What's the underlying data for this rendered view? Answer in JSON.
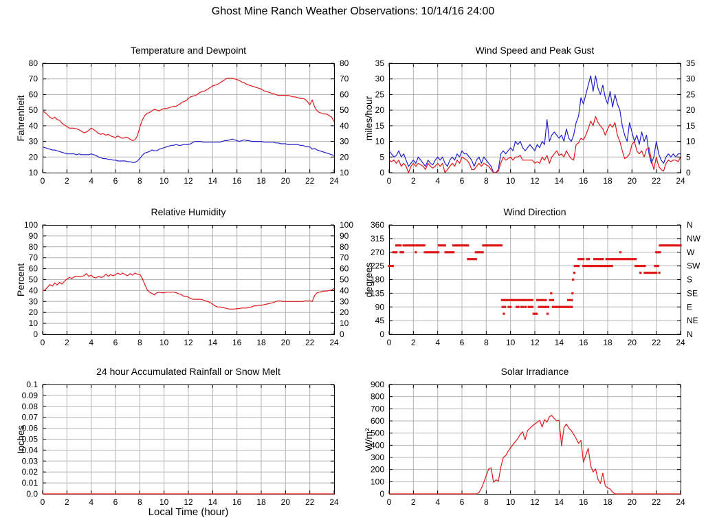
{
  "page_title": "Ghost Mine Ranch Weather Observations: 10/14/16 24:00",
  "x_axis_label": "Local Time (hour)",
  "colors": {
    "background": "#ffffff",
    "axis": "#000000",
    "grid": "#b4b4b4",
    "series_red": "#e01717",
    "series_blue": "#2020cc"
  },
  "chart_data": [
    {
      "type": "line",
      "title": "Temperature and Dewpoint",
      "ylabel": "Fahrenheit",
      "ylim": [
        10,
        80
      ],
      "ytick_step": 10,
      "mirror_y_labels": true,
      "xlim": [
        0,
        24
      ],
      "xtick_step": 2,
      "grid": true,
      "series": [
        {
          "name": "Temperature",
          "color": "red",
          "x0": 0,
          "dx": 0.2,
          "values": [
            49.5,
            48.5,
            47,
            45.5,
            44.5,
            45.5,
            44,
            43.5,
            41.5,
            40.5,
            39.5,
            38.5,
            38.5,
            38.5,
            38,
            37.5,
            36.5,
            35.5,
            36,
            37,
            38.5,
            37.5,
            36.5,
            35,
            34.5,
            35,
            34,
            34.5,
            33.5,
            33,
            32.5,
            33.5,
            32.5,
            32,
            32.5,
            32.5,
            31.5,
            30.5,
            31,
            33.5,
            39,
            43.5,
            46.5,
            48,
            48.5,
            49.5,
            50.5,
            50,
            49.5,
            50.5,
            51,
            51,
            51.5,
            52,
            52.5,
            52.5,
            53.5,
            54.5,
            55.5,
            56,
            57.5,
            58.5,
            59,
            59.5,
            60.5,
            61.5,
            62,
            62.5,
            63.5,
            64.5,
            65.5,
            66,
            66.5,
            67.5,
            68.5,
            69.5,
            70.5,
            70.5,
            70.5,
            70,
            69.5,
            69,
            68,
            67.5,
            66.5,
            66,
            65.5,
            65,
            64.5,
            64,
            63.5,
            62.5,
            62,
            61.5,
            61,
            60.5,
            60,
            59.5,
            59.5,
            59.5,
            59.5,
            59.5,
            59,
            58.5,
            58.5,
            58,
            57.5,
            57.5,
            57,
            55.5,
            53.5,
            56.5,
            52,
            49.5,
            48.5,
            48,
            47.5,
            47.5,
            46.5,
            45.5,
            42.5
          ]
        },
        {
          "name": "Dewpoint",
          "color": "blue",
          "x0": 0,
          "dx": 0.2,
          "values": [
            26.5,
            26,
            25.5,
            25,
            24.5,
            24.5,
            24,
            23.5,
            23,
            22.5,
            22,
            22,
            22,
            22,
            21.5,
            22,
            21.5,
            21.5,
            21.5,
            21.5,
            22,
            21.5,
            21,
            20,
            19.5,
            19,
            19,
            18.5,
            18.5,
            18,
            18,
            17.5,
            17.5,
            17.5,
            17.5,
            17,
            17,
            16.5,
            16.5,
            17.5,
            19,
            21,
            22.5,
            23,
            23.5,
            24.5,
            24,
            24,
            25,
            25.5,
            26,
            26.5,
            27,
            27.5,
            27.5,
            28,
            27.5,
            27.5,
            28,
            28,
            28,
            28.5,
            29.5,
            30,
            30,
            30,
            29.5,
            29.5,
            29.5,
            29.5,
            29.5,
            29.5,
            29.5,
            29.5,
            30,
            30.5,
            30.5,
            31,
            31.5,
            31,
            30.5,
            30,
            30.5,
            31,
            30.5,
            30.5,
            30,
            30,
            30,
            30,
            30,
            29.5,
            29.5,
            29.5,
            29.5,
            29.5,
            29,
            29,
            28.5,
            28.5,
            28.5,
            28,
            28,
            28,
            28,
            28,
            27.5,
            27.5,
            27,
            26.5,
            26.5,
            25,
            25.5,
            24.5,
            24,
            23.5,
            23,
            22.5,
            22,
            21.5,
            21
          ]
        }
      ]
    },
    {
      "type": "line",
      "title": "Wind Speed and Peak Gust",
      "ylabel": "miles/hour",
      "ylim": [
        0,
        35
      ],
      "ytick_step": 5,
      "mirror_y_labels": true,
      "xlim": [
        0,
        24
      ],
      "xtick_step": 2,
      "grid": true,
      "series": [
        {
          "name": "Peak Gust",
          "color": "blue",
          "x0": 0,
          "dx": 0.2,
          "values": [
            7,
            6,
            5,
            5.5,
            7,
            5,
            6,
            4,
            2,
            3,
            4,
            3,
            5,
            4,
            3,
            2,
            4,
            3,
            2.5,
            4,
            5,
            4,
            5,
            3,
            2,
            4,
            5,
            4,
            6,
            5,
            7,
            6,
            6,
            5,
            4,
            2,
            4,
            5,
            3,
            5,
            4,
            3,
            2,
            0,
            0,
            1,
            6,
            7,
            6,
            7,
            8,
            7,
            10,
            9,
            10,
            8,
            7,
            8,
            9,
            8,
            7,
            9,
            8,
            10,
            9,
            17,
            10,
            12,
            13,
            12,
            11,
            12,
            10,
            14,
            11,
            10,
            12,
            16,
            18,
            24,
            22,
            25,
            28,
            31,
            26,
            31,
            27,
            25,
            28,
            24,
            22,
            26,
            21,
            25,
            22,
            20,
            15,
            12,
            10,
            16,
            13,
            10,
            12,
            9,
            13,
            10,
            12,
            6,
            3,
            5,
            10,
            6,
            4,
            3,
            5,
            6,
            5,
            6,
            5,
            6,
            6
          ]
        },
        {
          "name": "Wind Speed",
          "color": "red",
          "x0": 0,
          "dx": 0.2,
          "values": [
            4,
            3.5,
            4,
            3,
            4,
            2,
            3,
            2,
            0,
            2,
            3,
            2,
            3,
            2.5,
            2,
            1,
            3,
            2,
            1.5,
            2,
            3,
            2,
            3,
            0,
            1,
            2,
            3,
            2,
            4,
            3,
            5,
            4.5,
            4,
            3,
            1,
            1,
            2,
            3,
            2,
            3,
            2.5,
            2,
            1,
            0,
            0,
            0.5,
            3,
            5,
            4,
            4.5,
            5,
            4,
            5,
            5,
            5.5,
            4,
            4,
            4,
            4,
            4,
            3,
            3.5,
            3,
            5,
            4,
            5.5,
            3,
            5,
            6,
            7,
            5.5,
            6,
            5,
            7,
            5.5,
            4.5,
            4,
            9,
            9.5,
            11,
            10.5,
            12,
            14,
            16.5,
            15,
            18,
            16,
            15,
            14,
            12,
            14,
            15.5,
            14.5,
            16,
            12,
            10,
            7,
            4.5,
            5,
            6,
            9,
            10,
            7,
            6,
            7,
            5,
            7.5,
            8,
            4,
            1,
            5,
            2,
            1,
            0.5,
            3,
            4,
            3.5,
            4,
            4,
            3.5,
            5
          ]
        }
      ]
    },
    {
      "type": "line",
      "title": "Relative Humidity",
      "ylabel": "Percent",
      "ylim": [
        0,
        100
      ],
      "ytick_step": 10,
      "mirror_y_labels": true,
      "xlim": [
        0,
        24
      ],
      "xtick_step": 2,
      "grid": true,
      "series": [
        {
          "name": "Relative Humidity",
          "color": "red",
          "x0": 0,
          "dx": 0.2,
          "values": [
            40,
            40.5,
            43,
            45.5,
            44,
            47,
            45,
            47.5,
            46,
            48.5,
            50.5,
            52,
            51,
            52.5,
            53,
            52.5,
            53,
            53.5,
            55.5,
            53,
            54,
            52,
            51.5,
            53,
            52,
            52.5,
            55,
            53,
            54.5,
            53.5,
            54.5,
            56,
            54.5,
            56,
            54.5,
            53.5,
            55.5,
            54,
            56,
            55,
            55,
            51,
            46,
            41,
            38.5,
            37.5,
            36,
            38,
            38.5,
            38,
            38,
            38.5,
            38.5,
            38.5,
            38.5,
            38,
            37,
            36.5,
            35,
            34.5,
            34,
            32.5,
            32,
            32,
            32,
            32,
            31.5,
            30.5,
            30,
            29,
            27.5,
            26,
            25,
            25,
            24.5,
            24,
            23.5,
            23,
            23,
            23,
            23.5,
            23.5,
            24,
            24,
            24,
            24.5,
            25,
            26,
            26,
            26.5,
            26.5,
            27,
            27.5,
            28,
            28.5,
            29,
            30,
            30.5,
            30.5,
            30,
            30,
            30,
            30,
            30,
            30,
            30,
            30,
            30,
            30.5,
            30.5,
            30.5,
            30,
            35.5,
            38,
            38.5,
            39,
            39.5,
            39.5,
            40,
            40.5,
            42
          ]
        }
      ]
    },
    {
      "type": "scatter",
      "title": "Wind Direction",
      "ylabel": "degrees",
      "ylim": [
        0,
        360
      ],
      "ytick_step": 45,
      "mirror_y_labels": false,
      "xlim": [
        0,
        24
      ],
      "xtick_step": 2,
      "grid": true,
      "right_axis_labels": [
        "N",
        "NE",
        "E",
        "SE",
        "S",
        "SW",
        "W",
        "NW",
        "N"
      ],
      "point_color": "red",
      "runs": [
        [
          225,
          0.0,
          0.3
        ],
        [
          270,
          0.35,
          0.6
        ],
        [
          292.5,
          0.6,
          0.95
        ],
        [
          270,
          0.95,
          1.15
        ],
        [
          292.5,
          1.2,
          2.9
        ],
        [
          270,
          2.15,
          2.25
        ],
        [
          270,
          2.95,
          4.05
        ],
        [
          292.5,
          4.1,
          4.6
        ],
        [
          270,
          4.65,
          5.3
        ],
        [
          292.5,
          5.3,
          5.55
        ],
        [
          292.5,
          5.6,
          6.5
        ],
        [
          247.5,
          6.5,
          7.15
        ],
        [
          270,
          7.15,
          7.7
        ],
        [
          292.5,
          7.75,
          9.25
        ],
        [
          112.5,
          9.3,
          9.5
        ],
        [
          67.5,
          9.4,
          9.5
        ],
        [
          90,
          9.35,
          9.55
        ],
        [
          112.5,
          9.55,
          10.05
        ],
        [
          90,
          9.85,
          10.0
        ],
        [
          112.5,
          10.15,
          11.0
        ],
        [
          90,
          10.5,
          10.65
        ],
        [
          112.5,
          11.05,
          11.8
        ],
        [
          90,
          10.9,
          11.05
        ],
        [
          90,
          11.2,
          11.3
        ],
        [
          90,
          11.5,
          11.8
        ],
        [
          67.5,
          11.9,
          12.15
        ],
        [
          112.5,
          12.2,
          12.9
        ],
        [
          90,
          12.35,
          13.1
        ],
        [
          67.5,
          13.0,
          13.1
        ],
        [
          135,
          13.3,
          13.4
        ],
        [
          112.5,
          13.25,
          13.5
        ],
        [
          90,
          13.5,
          15.05
        ],
        [
          112.5,
          14.75,
          15.05
        ],
        [
          135,
          15.05,
          15.15
        ],
        [
          180,
          15.1,
          15.2
        ],
        [
          202.5,
          15.2,
          15.3
        ],
        [
          225,
          15.3,
          15.6
        ],
        [
          247.5,
          15.6,
          16.0
        ],
        [
          225,
          16.0,
          16.6
        ],
        [
          247.5,
          16.3,
          16.45
        ],
        [
          225,
          16.65,
          17.4
        ],
        [
          247.5,
          16.9,
          17.2
        ],
        [
          247.5,
          17.35,
          17.6
        ],
        [
          225,
          17.5,
          17.85
        ],
        [
          247.5,
          17.9,
          19.0
        ],
        [
          225,
          17.9,
          18.35
        ],
        [
          270,
          19.0,
          19.1
        ],
        [
          247.5,
          19.15,
          20.3
        ],
        [
          225,
          20.3,
          21.05
        ],
        [
          202.5,
          20.65,
          20.75
        ],
        [
          202.5,
          21.05,
          22.0
        ],
        [
          225,
          21.9,
          22.15
        ],
        [
          270,
          21.95,
          22.05
        ],
        [
          270,
          22.15,
          22.3
        ],
        [
          202.5,
          22.2,
          22.3
        ],
        [
          292.5,
          22.3,
          24.0
        ]
      ]
    },
    {
      "type": "line",
      "title": "24 hour Accumulated Rainfall or Snow Melt",
      "ylabel": "Inches",
      "ylim": [
        0,
        0.1
      ],
      "ytick_step": 0.01,
      "mirror_y_labels": false,
      "ytick_labels": [
        "0.0",
        "0.01",
        "0.02",
        "0.03",
        "0.04",
        "0.05",
        "0.06",
        "0.07",
        "0.08",
        "0.09",
        "0.1"
      ],
      "xlim": [
        0,
        24
      ],
      "xtick_step": 2,
      "grid": true,
      "series": [
        {
          "name": "Accumulated Rainfall",
          "color": "red",
          "x0": 0,
          "dx": 12,
          "values": [
            0,
            0,
            0
          ]
        }
      ]
    },
    {
      "type": "line",
      "title": "Solar Irradiance",
      "ylabel": "W/m²",
      "ylim": [
        0,
        900
      ],
      "ytick_step": 100,
      "mirror_y_labels": false,
      "xlim": [
        0,
        24
      ],
      "xtick_step": 2,
      "grid": true,
      "series": [
        {
          "name": "Solar Irradiance",
          "color": "red",
          "x0": 0,
          "dx": 0.2,
          "values": [
            0,
            0,
            0,
            0,
            0,
            0,
            0,
            0,
            0,
            0,
            0,
            0,
            0,
            0,
            0,
            0,
            0,
            0,
            0,
            0,
            0,
            0,
            0,
            0,
            0,
            0,
            0,
            0,
            0,
            0,
            0,
            0,
            0,
            0,
            0,
            0,
            0,
            10,
            45,
            95,
            150,
            205,
            215,
            95,
            115,
            105,
            220,
            300,
            315,
            350,
            380,
            405,
            430,
            455,
            490,
            510,
            445,
            520,
            540,
            560,
            575,
            590,
            605,
            550,
            610,
            590,
            635,
            645,
            620,
            600,
            605,
            395,
            545,
            575,
            540,
            520,
            490,
            455,
            415,
            440,
            260,
            320,
            375,
            230,
            180,
            205,
            120,
            85,
            170,
            65,
            50,
            40,
            15,
            0,
            0,
            0,
            0,
            0,
            0,
            0,
            0,
            0,
            0,
            0,
            0,
            0,
            0,
            0,
            0,
            0,
            0,
            0,
            0,
            0,
            0,
            0,
            0,
            0,
            0,
            0,
            0
          ]
        }
      ]
    }
  ]
}
